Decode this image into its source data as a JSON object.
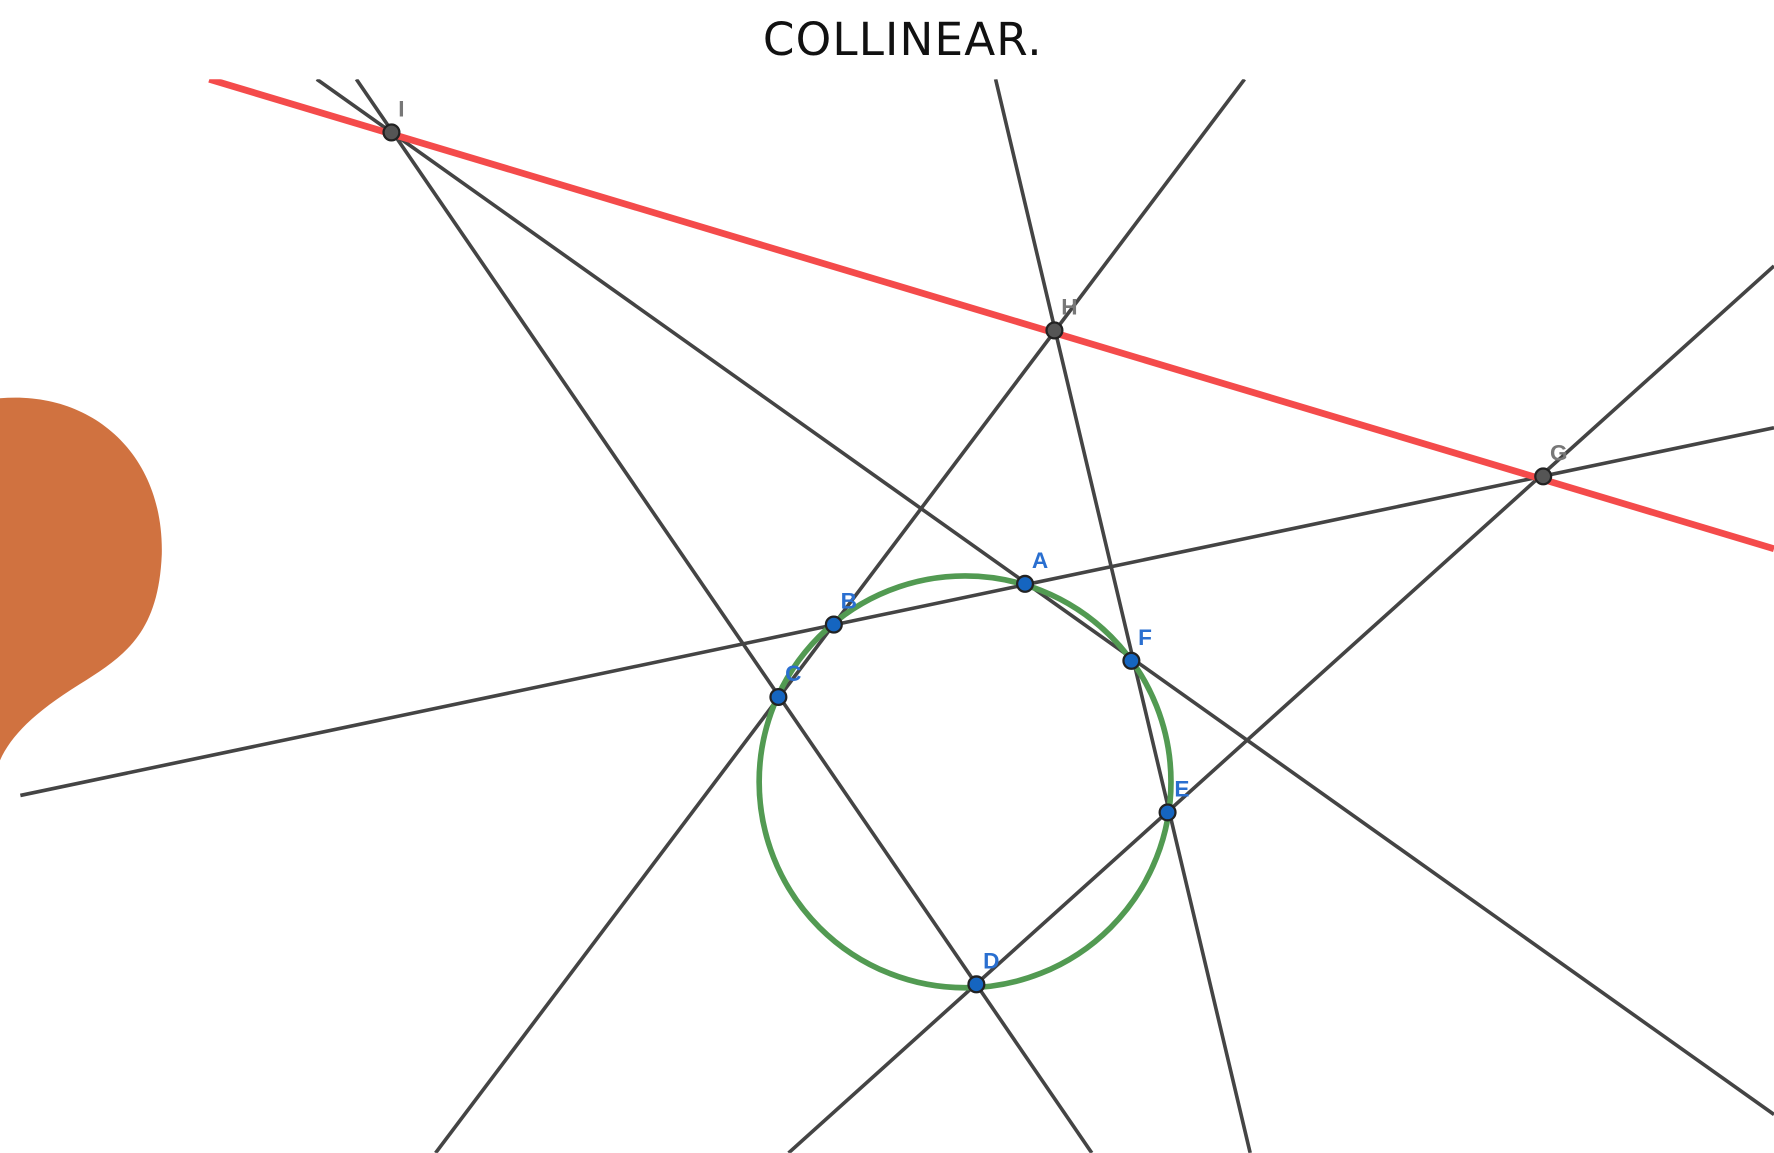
{
  "title": "COLLINEAR.",
  "points": [
    {
      "label": "I"
    },
    {
      "label": "H"
    },
    {
      "label": "G"
    },
    {
      "label": "A"
    },
    {
      "label": "B"
    },
    {
      "label": "C"
    },
    {
      "label": "D"
    },
    {
      "label": "E"
    },
    {
      "label": "F"
    }
  ]
}
